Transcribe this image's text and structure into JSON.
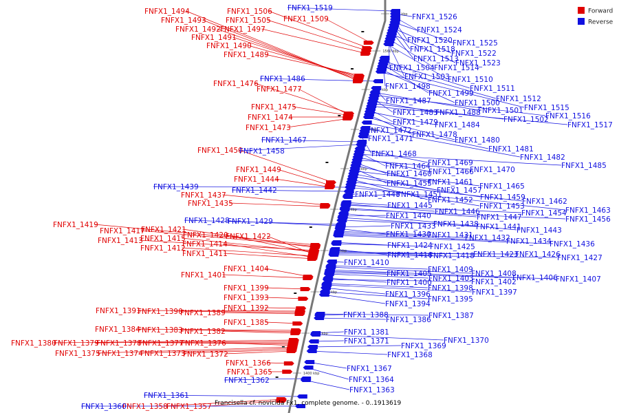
{
  "colors": {
    "forward": "#e00000",
    "reverse": "#1010e0",
    "backbone": "#777777"
  },
  "legend": [
    {
      "label": "Forward",
      "strand": "forward"
    },
    {
      "label": "Reverse",
      "strand": "reverse"
    }
  ],
  "caption": "Francisella cf. novicida Fx1, complete genome. - 0..1913619",
  "ticks": [
    "1580 kbp",
    "1560 kbp",
    "1540 kbp",
    "1520 kbp",
    "1500 kbp",
    "1480 kbp",
    "1460 kbp",
    "1440 kbp",
    "1420 kbp",
    "1400 kbp"
  ],
  "forward_genes": [
    "FNFX1_1494",
    "FNFX1_1493",
    "FNFX1_1492",
    "FNFX1_1491",
    "FNFX1_1490",
    "FNFX1_1489",
    "FNFX1_1506",
    "FNFX1_1505",
    "FNFX1_1497",
    "FNFX1_1509",
    "FNFX1_1476",
    "FNFX1_1477",
    "FNFX1_1475",
    "FNFX1_1474",
    "FNFX1_1473",
    "FNFX1_1450",
    "FNFX1_1449",
    "FNFX1_1444",
    "FNFX1_1437",
    "FNFX1_1435",
    "FNFX1_1419",
    "FNFX1_1417",
    "FNFX1_1421",
    "FNFX1_1413",
    "FNFX1_1415",
    "FNFX1_1420",
    "FNFX1_1422",
    "FNFX1_1412",
    "FNFX1_1414",
    "FNFX1_1411",
    "FNFX1_1404",
    "FNFX1_1401",
    "FNFX1_1399",
    "FNFX1_1393",
    "FNFX1_1392",
    "FNFX1_1391",
    "FNFX1_1390",
    "FNFX1_1389",
    "FNFX1_1385",
    "FNFX1_1384",
    "FNFX1_1383",
    "FNFX1_1382",
    "FNFX1_1380",
    "FNFX1_1379",
    "FNFX1_1378",
    "FNFX1_1377",
    "FNFX1_1376",
    "FNFX1_1375",
    "FNFX1_1374",
    "FNFX1_1373",
    "FNFX1_1372",
    "FNFX1_1366",
    "FNFX1_1365",
    "FNFX1_1358",
    "FNFX1_1357"
  ],
  "reverse_genes": [
    "FNFX1_1519",
    "FNFX1_1526",
    "FNFX1_1524",
    "FNFX1_1520",
    "FNFX1_1525",
    "FNFX1_1518",
    "FNFX1_1522",
    "FNFX1_1513",
    "FNFX1_1523",
    "FNFX1_1504",
    "FNFX1_1514",
    "FNFX1_1503",
    "FNFX1_1510",
    "FNFX1_1486",
    "FNFX1_1498",
    "FNFX1_1511",
    "FNFX1_1499",
    "FNFX1_1512",
    "FNFX1_1500",
    "FNFX1_1515",
    "FNFX1_1487",
    "FNFX1_1501",
    "FNFX1_1516",
    "FNFX1_1483",
    "FNFX1_1488",
    "FNFX1_1502",
    "FNFX1_1517",
    "FNFX1_1479",
    "FNFX1_1484",
    "FNFX1_1472",
    "FNFX1_1478",
    "FNFX1_1480",
    "FNFX1_1471",
    "FNFX1_1481",
    "FNFX1_1467",
    "FNFX1_1458",
    "FNFX1_1468",
    "FNFX1_1482",
    "FNFX1_1469",
    "FNFX1_1464",
    "FNFX1_1485",
    "FNFX1_1466",
    "FNFX1_1470",
    "FNFX1_1460",
    "FNFX1_1461",
    "FNFX1_1439",
    "FNFX1_1455",
    "FNFX1_1465",
    "FNFX1_1442",
    "FNFX1_1457",
    "FNFX1_1448",
    "FNFX1_1451",
    "FNFX1_1459",
    "FNFX1_1452",
    "FNFX1_1462",
    "FNFX1_1445",
    "FNFX1_1453",
    "FNFX1_1463",
    "FNFX1_1446",
    "FNFX1_1454",
    "FNFX1_1440",
    "FNFX1_1447",
    "FNFX1_1456",
    "FNFX1_1428",
    "FNFX1_1429",
    "FNFX1_1438",
    "FNFX1_1433",
    "FNFX1_1441",
    "FNFX1_1443",
    "FNFX1_1430",
    "FNFX1_1431",
    "FNFX1_1432",
    "FNFX1_1434",
    "FNFX1_1436",
    "FNFX1_1424",
    "FNFX1_1425",
    "FNFX1_1416",
    "FNFX1_1418",
    "FNFX1_1423",
    "FNFX1_1426",
    "FNFX1_1427",
    "FNFX1_1410",
    "FNFX1_1409",
    "FNFX1_1405",
    "FNFX1_1408",
    "FNFX1_1403",
    "FNFX1_1406",
    "FNFX1_1407",
    "FNFX1_1400",
    "FNFX1_1402",
    "FNFX1_1398",
    "FNFX1_1397",
    "FNFX1_1396",
    "FNFX1_1395",
    "FNFX1_1394",
    "FNFX1_1388",
    "FNFX1_1387",
    "FNFX1_1386",
    "FNFX1_1381",
    "FNFX1_1370",
    "FNFX1_1371",
    "FNFX1_1369",
    "FNFX1_1368",
    "FNFX1_1367",
    "FNFX1_1364",
    "FNFX1_1362",
    "FNFX1_1363",
    "FNFX1_1361",
    "FNFX1_1360"
  ]
}
